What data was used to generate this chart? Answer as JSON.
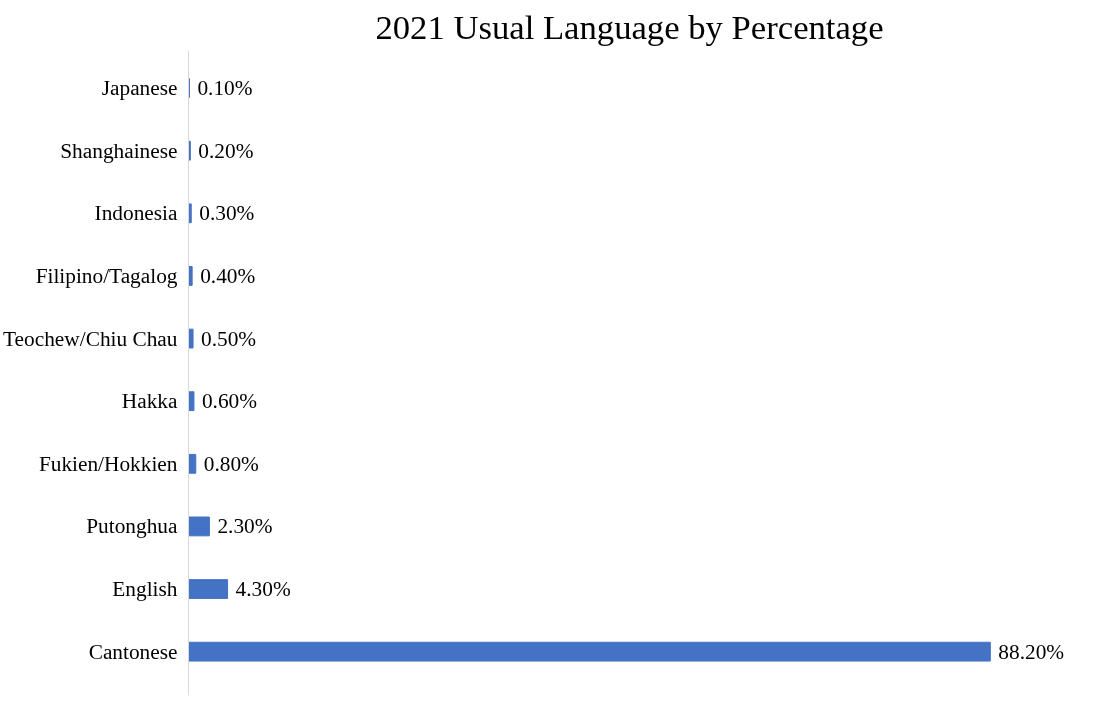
{
  "chart_data": {
    "type": "bar",
    "orientation": "horizontal",
    "title": "2021 Usual Language by Percentage",
    "categories": [
      "Japanese",
      "Shanghainese",
      "Indonesia",
      "Filipino/Tagalog",
      "Teochew/Chiu Chau",
      "Hakka",
      "Fukien/Hokkien",
      "Putonghua",
      "English",
      "Cantonese"
    ],
    "values": [
      0.1,
      0.2,
      0.3,
      0.4,
      0.5,
      0.6,
      0.8,
      2.3,
      4.3,
      88.2
    ],
    "value_labels": [
      "0.10%",
      "0.20%",
      "0.30%",
      "0.40%",
      "0.50%",
      "0.60%",
      "0.80%",
      "2.30%",
      "4.30%",
      "88.20%"
    ],
    "color": "#4472c4"
  }
}
